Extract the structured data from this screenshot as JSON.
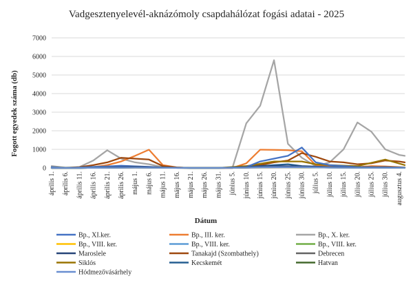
{
  "chart_data": {
    "type": "line",
    "title": "Vadgesztenyelevél-aknázómoly csapdahálózat fogási adatai - 2025",
    "xlabel": "Dátum",
    "ylabel": "Fogott egyedek száma (db)",
    "ylim": [
      0,
      7000
    ],
    "yticks": [
      "0",
      "1000",
      "2000",
      "3000",
      "4000",
      "5000",
      "6000",
      "7000"
    ],
    "categories": [
      "április 1.",
      "április 6.",
      "április 11.",
      "április 16.",
      "április 21.",
      "április 26.",
      "május 1.",
      "május 6.",
      "május 11.",
      "május 16.",
      "május 21.",
      "május 26.",
      "május 31.",
      "június 5.",
      "június 10.",
      "június 15.",
      "június 20.",
      "június 25.",
      "június 30.",
      "július 5.",
      "július 10.",
      "július 15.",
      "július 20.",
      "július 25.",
      "július 30.",
      "augusztus 4."
    ],
    "x_start": "április 1.",
    "x_end": "augusztus 6.",
    "grid": "horizontal",
    "legend_position": "bottom",
    "series": [
      {
        "name": "Bp., XI.ker.",
        "color": "#4472C4",
        "x": [
          1,
          6,
          11,
          16,
          21,
          26,
          31,
          36,
          41,
          46,
          51,
          56,
          61,
          66,
          71,
          76,
          81,
          86,
          91,
          96,
          101,
          106,
          111,
          116,
          121,
          126,
          128
        ],
        "values": [
          50,
          0,
          30,
          60,
          80,
          120,
          90,
          60,
          20,
          0,
          0,
          0,
          0,
          0,
          50,
          350,
          500,
          650,
          1100,
          300,
          150,
          100,
          50,
          50,
          30,
          20,
          10
        ]
      },
      {
        "name": "Bp., III. ker.",
        "color": "#ED7D31",
        "x": [
          1,
          6,
          11,
          16,
          21,
          26,
          31,
          36,
          41,
          46,
          51,
          56,
          61,
          66,
          71,
          76,
          81,
          86,
          91,
          96,
          101,
          106,
          111,
          116,
          121,
          126,
          128
        ],
        "values": [
          0,
          0,
          20,
          50,
          150,
          350,
          650,
          980,
          150,
          30,
          0,
          0,
          0,
          0,
          250,
          980,
          970,
          950,
          900,
          150,
          80,
          50,
          50,
          100,
          80,
          50,
          30
        ]
      },
      {
        "name": "Bp., X. ker.",
        "color": "#A5A5A5",
        "x": [
          1,
          6,
          11,
          16,
          21,
          26,
          31,
          36,
          41,
          46,
          51,
          56,
          61,
          66,
          71,
          76,
          81,
          86,
          91,
          96,
          101,
          106,
          111,
          116,
          121,
          126,
          128
        ],
        "values": [
          100,
          20,
          50,
          400,
          950,
          500,
          300,
          200,
          50,
          30,
          0,
          0,
          0,
          0,
          2400,
          3350,
          5800,
          1300,
          550,
          100,
          300,
          1000,
          2450,
          1950,
          1000,
          700,
          650
        ]
      },
      {
        "name": "Bp., VIII. ker.",
        "color": "#FFC000",
        "x": [
          1,
          11,
          21,
          31,
          41,
          51,
          61,
          71,
          81,
          91,
          101,
          111,
          121,
          128
        ],
        "values": [
          0,
          0,
          10,
          20,
          10,
          0,
          0,
          30,
          60,
          60,
          30,
          20,
          10,
          10
        ]
      },
      {
        "name": "Bp., VIII. ker.",
        "color": "#5B9BD5",
        "x": [
          1,
          11,
          21,
          31,
          41,
          51,
          61,
          71,
          81,
          91,
          101,
          111,
          121,
          128
        ],
        "values": [
          0,
          0,
          20,
          40,
          20,
          0,
          0,
          40,
          80,
          60,
          40,
          30,
          40,
          20
        ]
      },
      {
        "name": "Bp., VIII. ker.",
        "color": "#70AD47",
        "x": [
          1,
          11,
          21,
          31,
          41,
          51,
          61,
          71,
          81,
          91,
          101,
          111,
          121,
          128
        ],
        "values": [
          0,
          0,
          10,
          30,
          20,
          0,
          0,
          20,
          50,
          40,
          30,
          20,
          20,
          10
        ]
      },
      {
        "name": "Maroslele",
        "color": "#264478",
        "x": [
          1,
          11,
          21,
          31,
          41,
          51,
          61,
          71,
          81,
          91,
          101,
          111,
          121,
          128
        ],
        "values": [
          0,
          0,
          30,
          60,
          30,
          0,
          0,
          50,
          100,
          80,
          50,
          30,
          40,
          20
        ]
      },
      {
        "name": "Tanakajd (Szombathely)",
        "color": "#9E480E",
        "x": [
          1,
          6,
          11,
          16,
          21,
          26,
          31,
          36,
          41,
          46,
          51,
          56,
          61,
          66,
          71,
          76,
          81,
          86,
          91,
          96,
          101,
          106,
          111,
          116,
          121,
          126,
          128
        ],
        "values": [
          0,
          0,
          50,
          150,
          300,
          550,
          500,
          450,
          100,
          30,
          0,
          0,
          0,
          0,
          50,
          150,
          300,
          400,
          800,
          600,
          350,
          300,
          200,
          250,
          400,
          350,
          300
        ]
      },
      {
        "name": "Debrecen",
        "color": "#636363",
        "x": [
          1,
          11,
          21,
          31,
          41,
          51,
          61,
          71,
          81,
          91,
          101,
          111,
          121,
          128
        ],
        "values": [
          0,
          0,
          10,
          20,
          10,
          0,
          0,
          10,
          30,
          40,
          20,
          10,
          10,
          10
        ]
      },
      {
        "name": "Siklós",
        "color": "#997300",
        "x": [
          1,
          11,
          21,
          31,
          41,
          51,
          61,
          71,
          81,
          91,
          96,
          101,
          111,
          121,
          128
        ],
        "values": [
          0,
          0,
          20,
          50,
          20,
          0,
          0,
          100,
          350,
          350,
          200,
          150,
          100,
          450,
          150
        ]
      },
      {
        "name": "Kecskemét",
        "color": "#255E91",
        "x": [
          1,
          11,
          21,
          31,
          41,
          51,
          61,
          71,
          81,
          86,
          91,
          101,
          111,
          121,
          128
        ],
        "values": [
          0,
          0,
          20,
          50,
          20,
          0,
          0,
          50,
          150,
          200,
          100,
          50,
          30,
          20,
          10
        ]
      },
      {
        "name": "Hatvan",
        "color": "#43682B",
        "x": [
          1,
          11,
          21,
          31,
          41,
          51,
          61,
          71,
          81,
          91,
          101,
          111,
          121,
          128
        ],
        "values": [
          0,
          0,
          10,
          20,
          10,
          0,
          0,
          20,
          40,
          30,
          20,
          10,
          10,
          10
        ]
      },
      {
        "name": "Hódmezővásárhely",
        "color": "#698ED0",
        "x": [
          1,
          11,
          21,
          31,
          41,
          51,
          61,
          71,
          81,
          91,
          101,
          111,
          121,
          128
        ],
        "values": [
          0,
          0,
          10,
          20,
          10,
          0,
          0,
          20,
          50,
          40,
          20,
          10,
          10,
          10
        ]
      }
    ]
  }
}
